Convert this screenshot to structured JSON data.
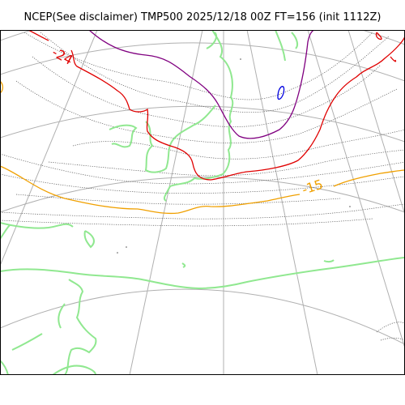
{
  "title": "NCEP(See disclaimer) TMP500 2025/12/18 00Z FT=156 (init 1112Z)",
  "contour_labels": [
    {
      "text": "-24",
      "color": "#e00000"
    },
    {
      "text": "-15",
      "color": "#f0a000"
    }
  ],
  "colors": {
    "graticule": "#b0b0b0",
    "coastline": "#90e890",
    "dotted_isotherm": "#555555",
    "isotherm_red": "#e00000",
    "isotherm_orange": "#f0a000",
    "isotherm_purple": "#800080",
    "isotherm_blue": "#0000e0"
  }
}
